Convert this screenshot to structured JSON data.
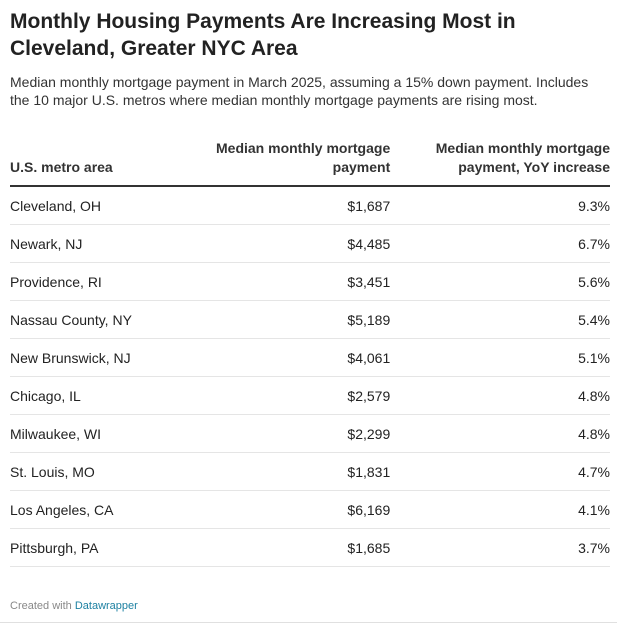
{
  "title": "Monthly Housing Payments Are Increasing Most in Cleveland, Greater NYC Area",
  "subtitle": "Median monthly mortgage payment in March 2025, assuming a 15% down payment. Includes the 10 major U.S. metros where median monthly mortgage payments are rising most.",
  "footer": {
    "prefix": "Created with",
    "brand": "Datawrapper"
  },
  "colors": {
    "text": "#222222",
    "header_rule": "#333333",
    "row_rule": "#e5e5e5",
    "brand": "#1d81a2"
  },
  "chart_data": {
    "type": "table",
    "columns": [
      "U.S. metro area",
      "Median monthly mortgage payment",
      "Median monthly mortgage payment, YoY increase"
    ],
    "rows": [
      {
        "metro": "Cleveland, OH",
        "payment": "$1,687",
        "yoy": "9.3%"
      },
      {
        "metro": "Newark, NJ",
        "payment": "$4,485",
        "yoy": "6.7%"
      },
      {
        "metro": "Providence, RI",
        "payment": "$3,451",
        "yoy": "5.6%"
      },
      {
        "metro": "Nassau County, NY",
        "payment": "$5,189",
        "yoy": "5.4%"
      },
      {
        "metro": "New Brunswick, NJ",
        "payment": "$4,061",
        "yoy": "5.1%"
      },
      {
        "metro": "Chicago, IL",
        "payment": "$2,579",
        "yoy": "4.8%"
      },
      {
        "metro": "Milwaukee, WI",
        "payment": "$2,299",
        "yoy": "4.8%"
      },
      {
        "metro": "St. Louis, MO",
        "payment": "$1,831",
        "yoy": "4.7%"
      },
      {
        "metro": "Los Angeles, CA",
        "payment": "$6,169",
        "yoy": "4.1%"
      },
      {
        "metro": "Pittsburgh, PA",
        "payment": "$1,685",
        "yoy": "3.7%"
      }
    ]
  }
}
